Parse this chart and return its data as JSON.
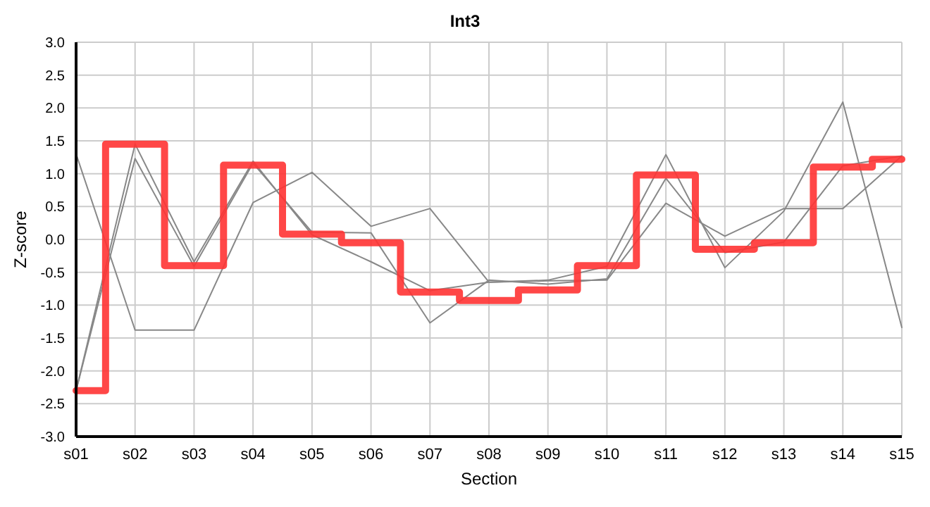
{
  "chart_data": {
    "type": "line",
    "title": "Int3",
    "xlabel": "Section",
    "ylabel": "Z-score",
    "categories": [
      "s01",
      "s02",
      "s03",
      "s04",
      "s05",
      "s06",
      "s07",
      "s08",
      "s09",
      "s10",
      "s11",
      "s12",
      "s13",
      "s14",
      "s15"
    ],
    "series": [
      {
        "color": "#888888",
        "values": [
          1.3,
          -1.38,
          -1.38,
          0.56,
          1.02,
          0.2,
          0.47,
          -0.65,
          -0.63,
          -0.62,
          0.55,
          0.05,
          0.47,
          0.47,
          1.27
        ]
      },
      {
        "color": "#888888",
        "values": [
          -2.3,
          1.45,
          -0.34,
          1.19,
          0.07,
          -0.34,
          -0.78,
          -0.65,
          -0.62,
          -0.41,
          1.29,
          -0.43,
          0.43,
          2.09,
          -1.34
        ]
      },
      {
        "color": "#888888",
        "values": [
          -2.3,
          1.23,
          -0.41,
          1.16,
          0.11,
          0.1,
          -1.27,
          -0.62,
          -0.68,
          -0.6,
          0.93,
          -0.2,
          -0.04,
          1.12,
          1.27
        ]
      },
      {
        "type": "step",
        "color": "#ff3333",
        "values": [
          -2.3,
          1.45,
          -0.4,
          1.13,
          0.08,
          -0.05,
          -0.8,
          -0.93,
          -0.77,
          -0.4,
          0.98,
          -0.15,
          -0.05,
          1.1,
          1.22
        ]
      }
    ],
    "ylim": [
      -3,
      3
    ],
    "yticks": [
      {
        "value": -3,
        "label": "-3.0"
      },
      {
        "value": -2.5,
        "label": "-2.5"
      },
      {
        "value": -2,
        "label": "-2.0"
      },
      {
        "value": -1.5,
        "label": "-1.5"
      },
      {
        "value": -1,
        "label": "-1.0"
      },
      {
        "value": -0.5,
        "label": "-0.5"
      },
      {
        "value": 0,
        "label": "0.0"
      },
      {
        "value": 0.5,
        "label": "0.5"
      },
      {
        "value": 1,
        "label": "1.0"
      },
      {
        "value": 1.5,
        "label": "1.5"
      },
      {
        "value": 2,
        "label": "2.0"
      },
      {
        "value": 2.5,
        "label": "2.5"
      },
      {
        "value": 3,
        "label": "3.0"
      }
    ],
    "grid": true,
    "marker": "none",
    "line_style": "solid"
  }
}
